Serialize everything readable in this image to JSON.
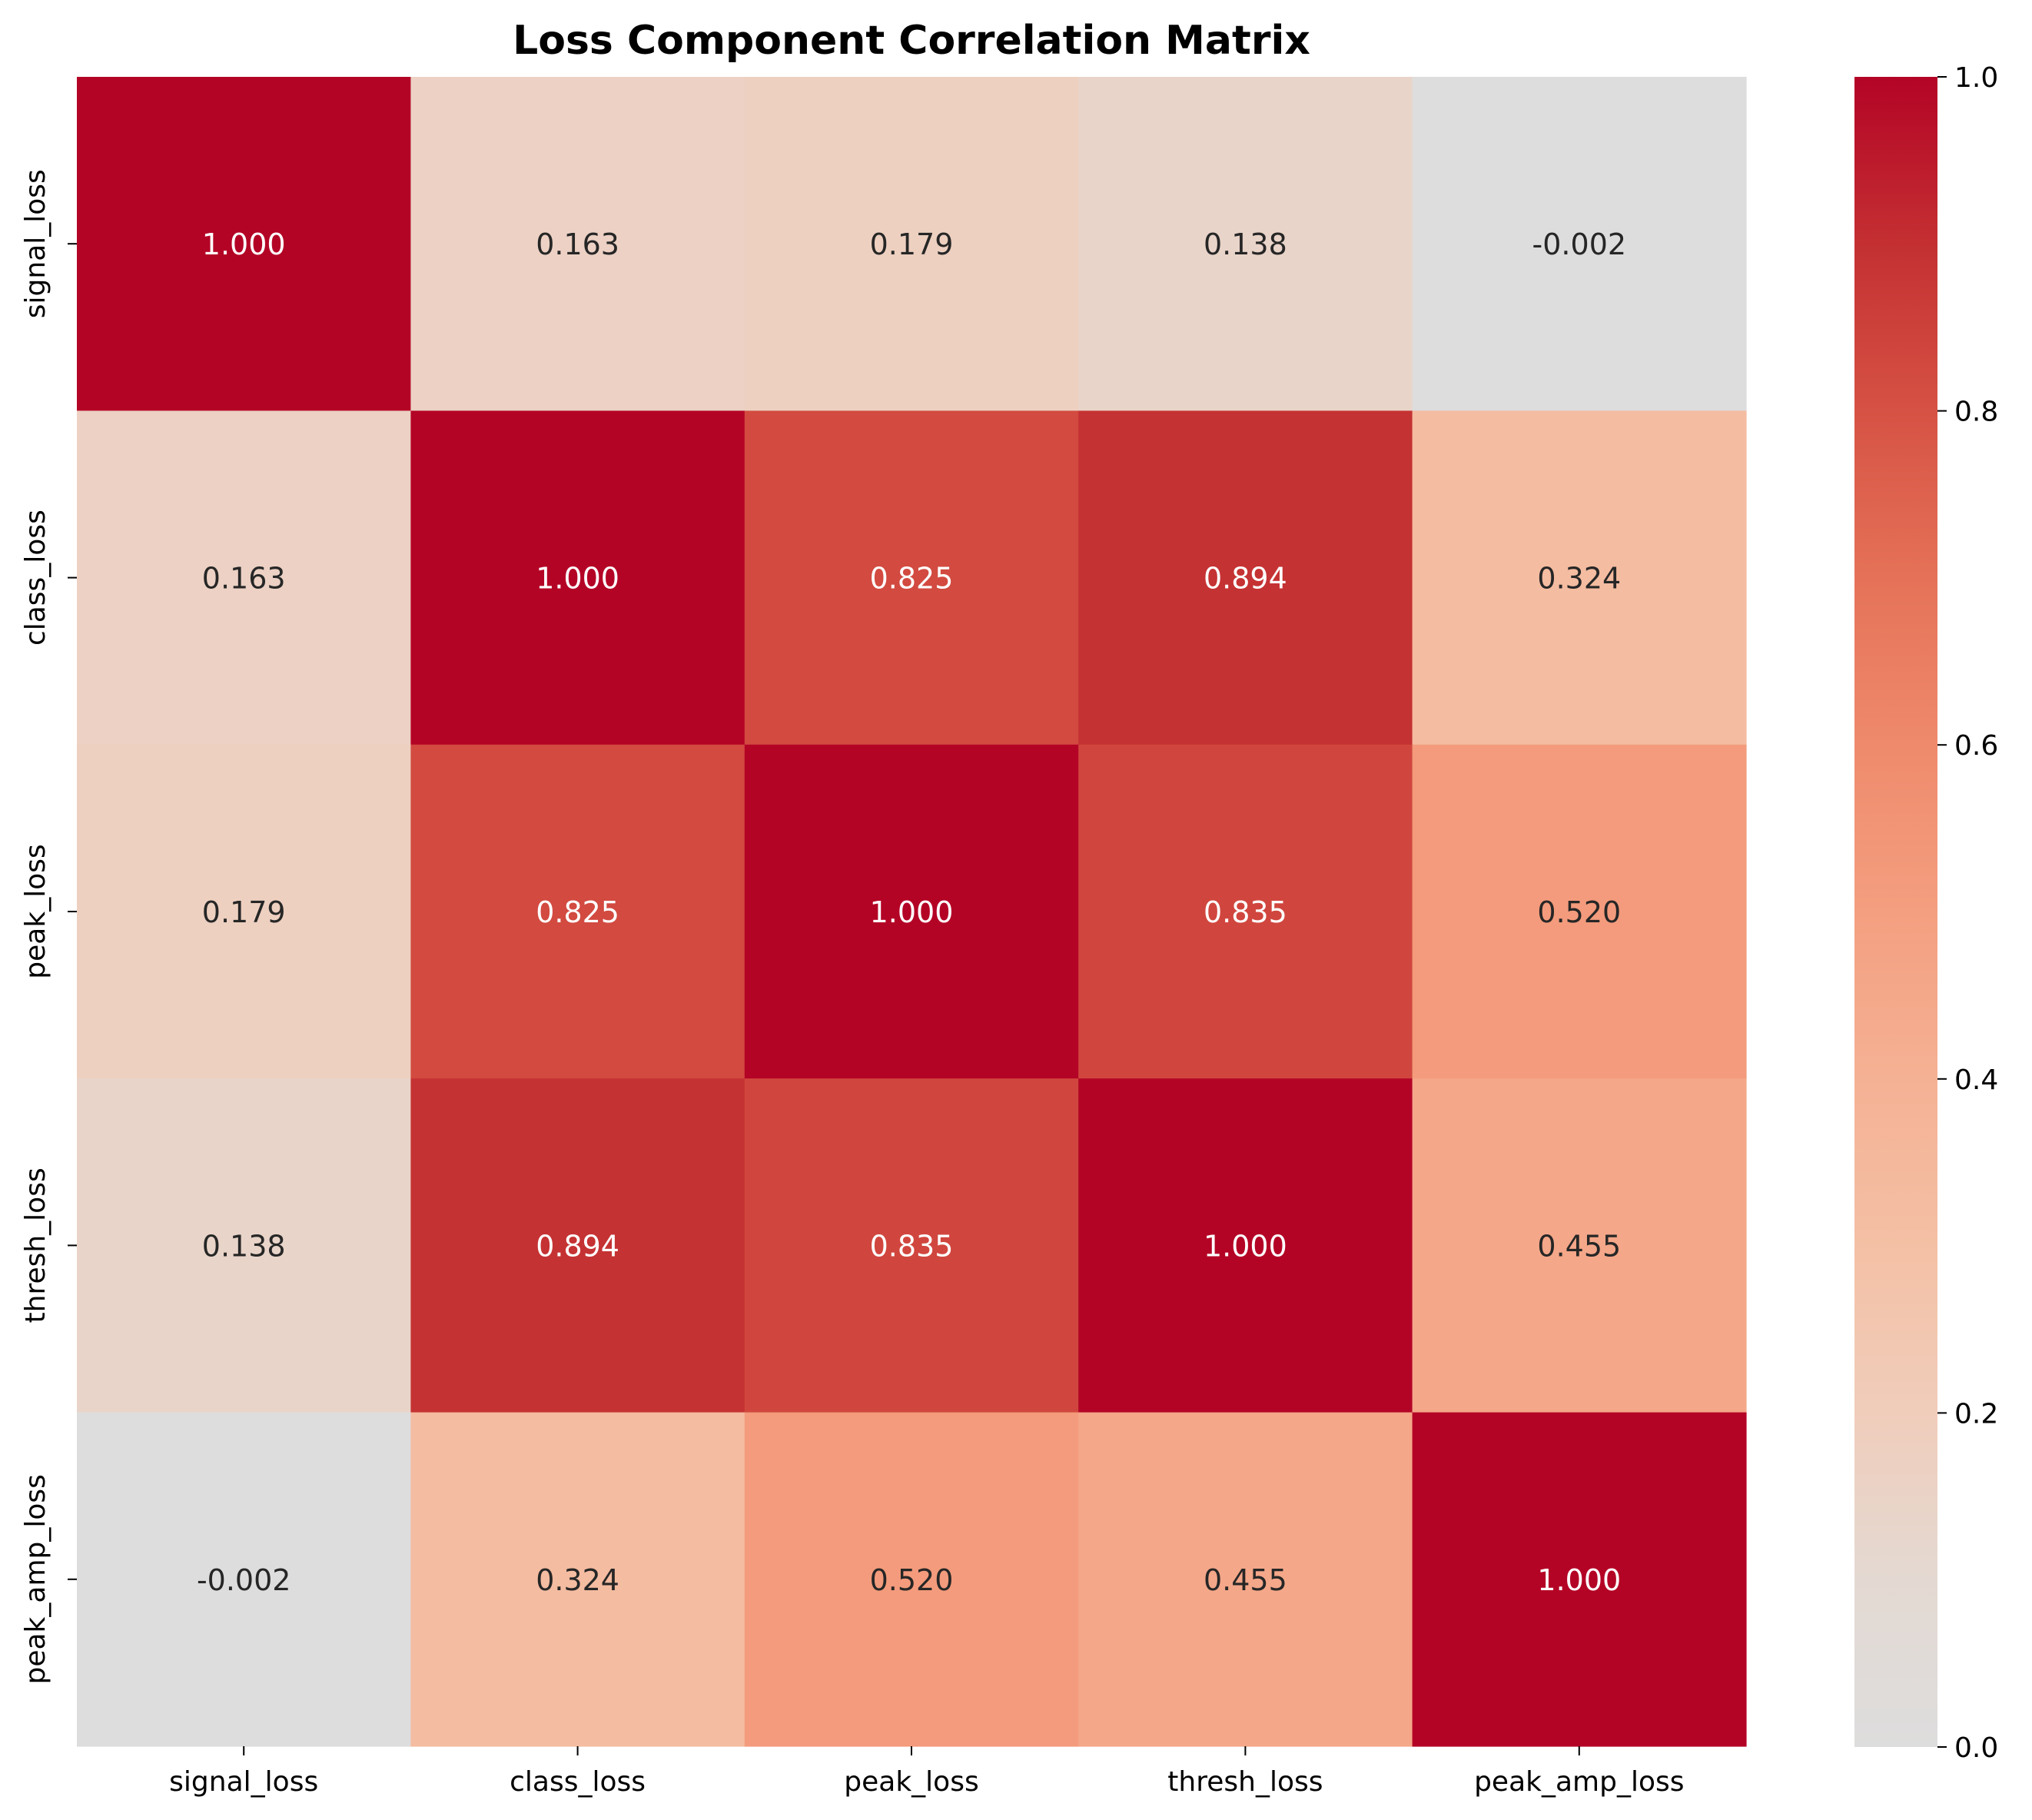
{
  "chart_data": {
    "type": "heatmap",
    "title": "Loss Component Correlation Matrix",
    "xlabel": "",
    "ylabel": "",
    "row_labels": [
      "signal_loss",
      "class_loss",
      "peak_loss",
      "thresh_loss",
      "peak_amp_loss"
    ],
    "col_labels": [
      "signal_loss",
      "class_loss",
      "peak_loss",
      "thresh_loss",
      "peak_amp_loss"
    ],
    "values": [
      [
        1.0,
        0.163,
        0.179,
        0.138,
        -0.002
      ],
      [
        0.163,
        1.0,
        0.825,
        0.894,
        0.324
      ],
      [
        0.179,
        0.825,
        1.0,
        0.835,
        0.52
      ],
      [
        0.138,
        0.894,
        0.835,
        1.0,
        0.455
      ],
      [
        -0.002,
        0.324,
        0.52,
        0.455,
        1.0
      ]
    ],
    "cell_labels": [
      [
        "1.000",
        "0.163",
        "0.179",
        "0.138",
        "-0.002"
      ],
      [
        "0.163",
        "1.000",
        "0.825",
        "0.894",
        "0.324"
      ],
      [
        "0.179",
        "0.825",
        "1.000",
        "0.835",
        "0.520"
      ],
      [
        "0.138",
        "0.894",
        "0.835",
        "1.000",
        "0.455"
      ],
      [
        "-0.002",
        "0.324",
        "0.520",
        "0.455",
        "1.000"
      ]
    ],
    "colormap": "coolwarm",
    "color_range": [
      0.0,
      1.0
    ],
    "colorbar": {
      "ticks": [
        0.0,
        0.2,
        0.4,
        0.6,
        0.8,
        1.0
      ],
      "tick_labels": [
        "0.0",
        "0.2",
        "0.4",
        "0.6",
        "0.8",
        "1.0"
      ],
      "placement": "right"
    },
    "colors": {
      "high": "#b40426",
      "low": "#dddddd",
      "text_dark": "#262626",
      "text_light": "#ffffff"
    }
  }
}
